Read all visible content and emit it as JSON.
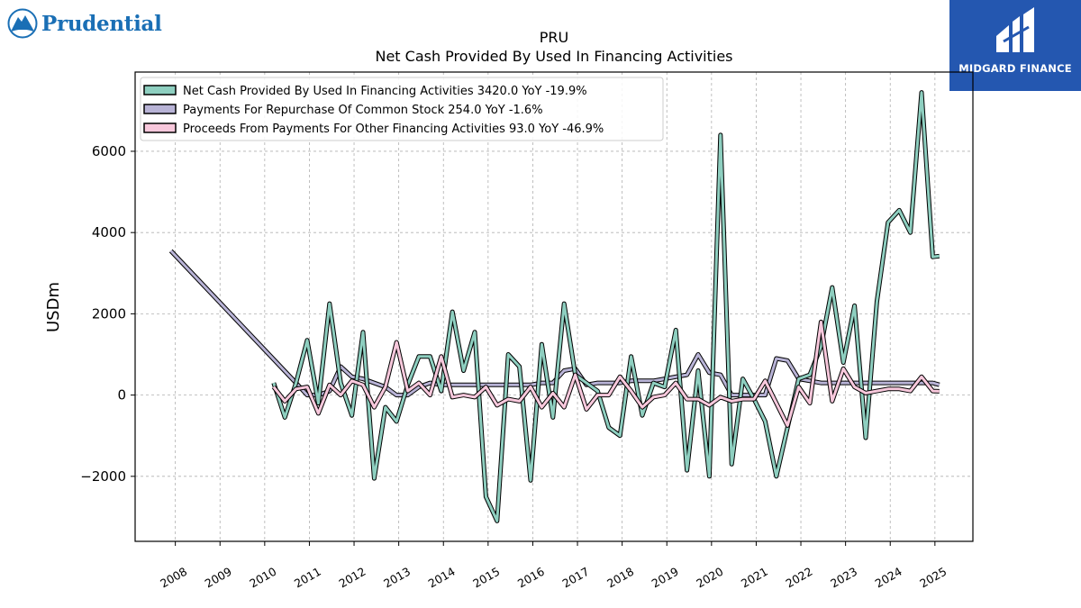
{
  "logos": {
    "left": {
      "text": "Prudential",
      "icon": "prudential-rock-icon"
    },
    "right": {
      "text": "MIDGARD FINANCE",
      "icon": "midgard-mark-icon",
      "background": "#2457b0"
    }
  },
  "chart_data": {
    "type": "line",
    "title": "PRU",
    "subtitle": "Net Cash Provided By Used In Financing Activities",
    "ylabel": "USDm",
    "xlabel": "",
    "ylim": [
      -3600,
      7950
    ],
    "xlim": [
      2007.1,
      2025.85
    ],
    "yticks": [
      -2000,
      0,
      2000,
      4000,
      6000
    ],
    "ytick_labels": [
      "−2000",
      "0",
      "2000",
      "4000",
      "6000"
    ],
    "xticks": [
      2008,
      2009,
      2010,
      2011,
      2012,
      2013,
      2014,
      2015,
      2016,
      2017,
      2018,
      2019,
      2020,
      2021,
      2022,
      2023,
      2024,
      2025
    ],
    "xtick_labels": [
      "2008",
      "2009",
      "2010",
      "2011",
      "2012",
      "2013",
      "2014",
      "2015",
      "2016",
      "2017",
      "2018",
      "2019",
      "2020",
      "2021",
      "2022",
      "2023",
      "2024",
      "2025"
    ],
    "grid": true,
    "legend_position": "top-left",
    "series": [
      {
        "name": "Net Cash Provided By Used In Financing Activities",
        "legend_label": "Net Cash Provided By Used In Financing Activities  3420.0 YoY -19.9%",
        "color": "#8ecfc0",
        "points": [
          [
            2010.2,
            300
          ],
          [
            2010.45,
            -550
          ],
          [
            2010.7,
            300
          ],
          [
            2010.95,
            1350
          ],
          [
            2011.2,
            -200
          ],
          [
            2011.45,
            2250
          ],
          [
            2011.7,
            300
          ],
          [
            2011.95,
            -500
          ],
          [
            2012.2,
            1550
          ],
          [
            2012.45,
            -2050
          ],
          [
            2012.7,
            -300
          ],
          [
            2012.95,
            -650
          ],
          [
            2013.2,
            250
          ],
          [
            2013.45,
            950
          ],
          [
            2013.7,
            950
          ],
          [
            2013.95,
            100
          ],
          [
            2014.2,
            2050
          ],
          [
            2014.45,
            600
          ],
          [
            2014.7,
            1550
          ],
          [
            2014.95,
            -2500
          ],
          [
            2015.2,
            -3100
          ],
          [
            2015.45,
            1000
          ],
          [
            2015.7,
            700
          ],
          [
            2015.95,
            -2100
          ],
          [
            2016.2,
            1250
          ],
          [
            2016.45,
            -550
          ],
          [
            2016.7,
            2250
          ],
          [
            2016.95,
            500
          ],
          [
            2017.2,
            300
          ],
          [
            2017.45,
            100
          ],
          [
            2017.7,
            -800
          ],
          [
            2017.95,
            -1000
          ],
          [
            2018.2,
            950
          ],
          [
            2018.45,
            -500
          ],
          [
            2018.7,
            300
          ],
          [
            2018.95,
            200
          ],
          [
            2019.2,
            1600
          ],
          [
            2019.45,
            -1850
          ],
          [
            2019.7,
            600
          ],
          [
            2019.95,
            -2000
          ],
          [
            2020.2,
            6400
          ],
          [
            2020.45,
            -1700
          ],
          [
            2020.7,
            400
          ],
          [
            2020.95,
            -100
          ],
          [
            2021.2,
            -650
          ],
          [
            2021.45,
            -2000
          ],
          [
            2021.7,
            -800
          ],
          [
            2021.95,
            400
          ],
          [
            2022.2,
            500
          ],
          [
            2022.45,
            1200
          ],
          [
            2022.7,
            2650
          ],
          [
            2022.95,
            800
          ],
          [
            2023.2,
            2200
          ],
          [
            2023.45,
            -1050
          ],
          [
            2023.7,
            2300
          ],
          [
            2023.95,
            4250
          ],
          [
            2024.2,
            4550
          ],
          [
            2024.45,
            4000
          ],
          [
            2024.7,
            7450
          ],
          [
            2024.95,
            3400
          ],
          [
            2025.1,
            3420
          ]
        ]
      },
      {
        "name": "Payments For Repurchase Of Common Stock",
        "legend_label": "Payments For Repurchase Of Common Stock  254.0 YoY -1.6%",
        "color": "#b8b3d6",
        "points": [
          [
            2007.9,
            3550
          ],
          [
            2010.7,
            300
          ],
          [
            2010.95,
            0
          ],
          [
            2011.2,
            0
          ],
          [
            2011.45,
            100
          ],
          [
            2011.7,
            700
          ],
          [
            2011.95,
            450
          ],
          [
            2012.2,
            400
          ],
          [
            2012.45,
            300
          ],
          [
            2012.7,
            200
          ],
          [
            2012.95,
            0
          ],
          [
            2013.2,
            0
          ],
          [
            2013.45,
            200
          ],
          [
            2013.7,
            300
          ],
          [
            2013.95,
            250
          ],
          [
            2014.2,
            250
          ],
          [
            2014.45,
            250
          ],
          [
            2014.7,
            250
          ],
          [
            2014.95,
            250
          ],
          [
            2015.2,
            250
          ],
          [
            2015.45,
            250
          ],
          [
            2015.7,
            250
          ],
          [
            2015.95,
            250
          ],
          [
            2016.2,
            300
          ],
          [
            2016.45,
            300
          ],
          [
            2016.7,
            600
          ],
          [
            2016.95,
            650
          ],
          [
            2017.2,
            250
          ],
          [
            2017.45,
            300
          ],
          [
            2017.7,
            300
          ],
          [
            2017.95,
            300
          ],
          [
            2018.2,
            350
          ],
          [
            2018.45,
            350
          ],
          [
            2018.7,
            350
          ],
          [
            2018.95,
            400
          ],
          [
            2019.2,
            450
          ],
          [
            2019.45,
            500
          ],
          [
            2019.7,
            1000
          ],
          [
            2019.95,
            550
          ],
          [
            2020.2,
            500
          ],
          [
            2020.45,
            0
          ],
          [
            2020.7,
            0
          ],
          [
            2020.95,
            0
          ],
          [
            2021.2,
            0
          ],
          [
            2021.45,
            900
          ],
          [
            2021.7,
            850
          ],
          [
            2021.95,
            400
          ],
          [
            2022.2,
            350
          ],
          [
            2022.45,
            300
          ],
          [
            2022.7,
            300
          ],
          [
            2022.95,
            300
          ],
          [
            2023.2,
            300
          ],
          [
            2023.45,
            300
          ],
          [
            2023.7,
            300
          ],
          [
            2023.95,
            300
          ],
          [
            2024.2,
            300
          ],
          [
            2024.45,
            300
          ],
          [
            2024.7,
            300
          ],
          [
            2024.95,
            300
          ],
          [
            2025.1,
            254
          ]
        ]
      },
      {
        "name": "Proceeds From Payments For Other Financing Activities",
        "legend_label": "Proceeds From Payments For Other Financing Activities  93.0 YoY -46.9%",
        "color": "#f8c8dc",
        "points": [
          [
            2010.2,
            200
          ],
          [
            2010.45,
            -150
          ],
          [
            2010.7,
            150
          ],
          [
            2010.95,
            200
          ],
          [
            2011.2,
            -450
          ],
          [
            2011.45,
            250
          ],
          [
            2011.7,
            0
          ],
          [
            2011.95,
            350
          ],
          [
            2012.2,
            250
          ],
          [
            2012.45,
            -300
          ],
          [
            2012.7,
            200
          ],
          [
            2012.95,
            1300
          ],
          [
            2013.2,
            100
          ],
          [
            2013.45,
            300
          ],
          [
            2013.7,
            0
          ],
          [
            2013.95,
            950
          ],
          [
            2014.2,
            -50
          ],
          [
            2014.45,
            0
          ],
          [
            2014.7,
            -50
          ],
          [
            2014.95,
            200
          ],
          [
            2015.2,
            -250
          ],
          [
            2015.45,
            -100
          ],
          [
            2015.7,
            -150
          ],
          [
            2015.95,
            200
          ],
          [
            2016.2,
            -300
          ],
          [
            2016.45,
            50
          ],
          [
            2016.7,
            -300
          ],
          [
            2016.95,
            500
          ],
          [
            2017.2,
            -350
          ],
          [
            2017.45,
            0
          ],
          [
            2017.7,
            0
          ],
          [
            2017.95,
            450
          ],
          [
            2018.2,
            100
          ],
          [
            2018.45,
            -300
          ],
          [
            2018.7,
            -50
          ],
          [
            2018.95,
            0
          ],
          [
            2019.2,
            300
          ],
          [
            2019.45,
            -100
          ],
          [
            2019.7,
            -100
          ],
          [
            2019.95,
            -250
          ],
          [
            2020.2,
            -50
          ],
          [
            2020.45,
            -150
          ],
          [
            2020.7,
            -100
          ],
          [
            2020.95,
            -100
          ],
          [
            2021.2,
            350
          ],
          [
            2021.45,
            -200
          ],
          [
            2021.7,
            -750
          ],
          [
            2021.95,
            200
          ],
          [
            2022.2,
            -200
          ],
          [
            2022.45,
            1800
          ],
          [
            2022.7,
            -150
          ],
          [
            2022.95,
            650
          ],
          [
            2023.2,
            200
          ],
          [
            2023.45,
            50
          ],
          [
            2023.7,
            100
          ],
          [
            2023.95,
            150
          ],
          [
            2024.2,
            150
          ],
          [
            2024.45,
            100
          ],
          [
            2024.7,
            450
          ],
          [
            2024.95,
            100
          ],
          [
            2025.1,
            93
          ]
        ]
      }
    ]
  }
}
